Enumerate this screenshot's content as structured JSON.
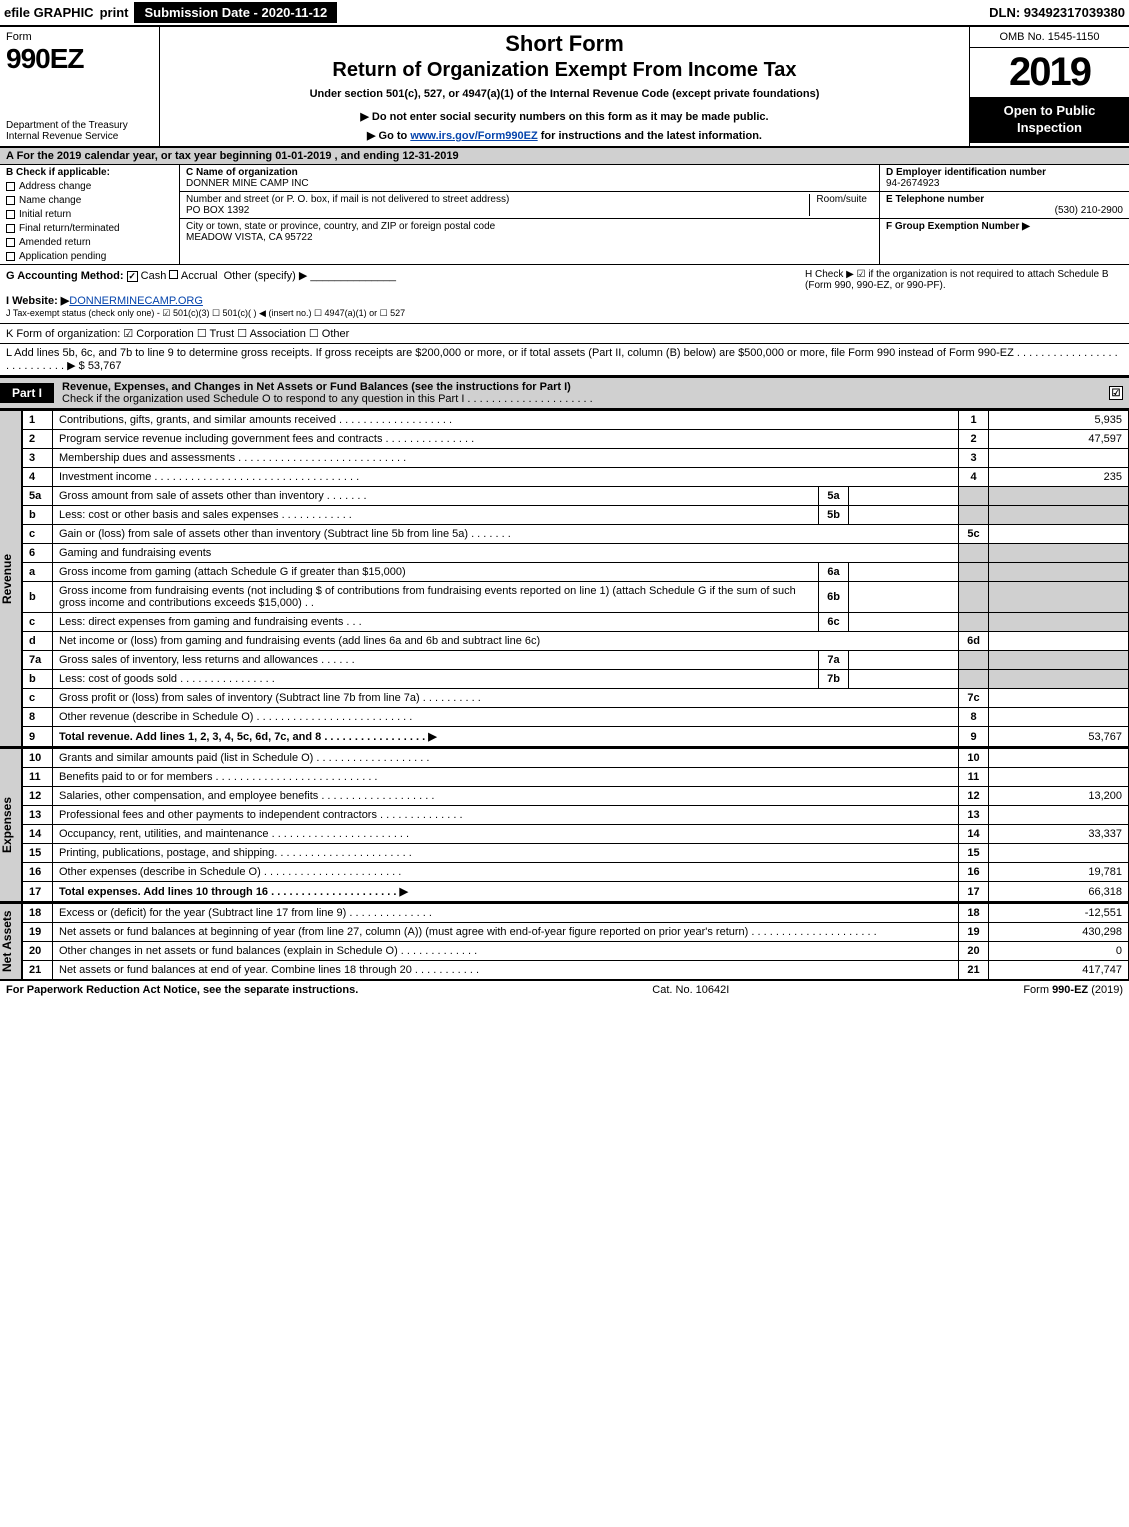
{
  "topbar": {
    "efile": "efile GRAPHIC",
    "print": "print",
    "submission_date_label": "Submission Date - 2020-11-12",
    "dln": "DLN: 93492317039380"
  },
  "header": {
    "form_word": "Form",
    "form_number": "990EZ",
    "dept": "Department of the Treasury",
    "irs": "Internal Revenue Service",
    "short_form": "Short Form",
    "title": "Return of Organization Exempt From Income Tax",
    "under_section": "Under section 501(c), 527, or 4947(a)(1) of the Internal Revenue Code (except private foundations)",
    "do_not_enter": "▶ Do not enter social security numbers on this form as it may be made public.",
    "goto_pre": "▶ Go to ",
    "goto_link": "www.irs.gov/Form990EZ",
    "goto_post": " for instructions and the latest information.",
    "omb": "OMB No. 1545-1150",
    "year": "2019",
    "open_public": "Open to Public Inspection"
  },
  "tax_year": "A For the 2019 calendar year, or tax year beginning 01-01-2019 , and ending 12-31-2019",
  "col_b": {
    "header": "B Check if applicable:",
    "items": [
      "Address change",
      "Name change",
      "Initial return",
      "Final return/terminated",
      "Amended return",
      "Application pending"
    ]
  },
  "col_c": {
    "name_label": "C Name of organization",
    "name": "DONNER MINE CAMP INC",
    "addr_label": "Number and street (or P. O. box, if mail is not delivered to street address)",
    "addr": "PO BOX 1392",
    "room_label": "Room/suite",
    "city_label": "City or town, state or province, country, and ZIP or foreign postal code",
    "city": "MEADOW VISTA, CA  95722"
  },
  "col_d": {
    "d_label": "D Employer identification number",
    "d_val": "94-2674923",
    "e_label": "E Telephone number",
    "e_val": "(530) 210-2900",
    "f_label": "F Group Exemption Number  ▶"
  },
  "g": {
    "label": "G Accounting Method:",
    "cash": "Cash",
    "accrual": "Accrual",
    "other": "Other (specify) ▶"
  },
  "h": "H  Check ▶  ☑  if the organization is not required to attach Schedule B (Form 990, 990-EZ, or 990-PF).",
  "i": {
    "label": "I Website: ▶",
    "val": "DONNERMINECAMP.ORG"
  },
  "j": "J Tax-exempt status (check only one) - ☑ 501(c)(3) ☐ 501(c)(  ) ◀ (insert no.) ☐ 4947(a)(1) or ☐ 527",
  "k": "K Form of organization:  ☑ Corporation  ☐ Trust  ☐ Association  ☐ Other",
  "l": {
    "text": "L Add lines 5b, 6c, and 7b to line 9 to determine gross receipts. If gross receipts are $200,000 or more, or if total assets (Part II, column (B) below) are $500,000 or more, file Form 990 instead of Form 990-EZ  .  .  .  .  .  .  .  .  .  .  .  .  .  .  .  .  .  .  .  .  .  .  .  .  .  .  .  ▶ $ ",
    "amount": "53,767"
  },
  "part1": {
    "label": "Part I",
    "title": "Revenue, Expenses, and Changes in Net Assets or Fund Balances (see the instructions for Part I)",
    "subtitle": "Check if the organization used Schedule O to respond to any question in this Part I  .  .  .  .  .  .  .  .  .  .  .  .  .  .  .  .  .  .  .  .  .",
    "checked": "☑"
  },
  "side_labels": {
    "revenue": "Revenue",
    "expenses": "Expenses",
    "net_assets": "Net Assets"
  },
  "lines": {
    "1": {
      "n": "1",
      "d": "Contributions, gifts, grants, and similar amounts received  .  .  .  .  .  .  .  .  .  .  .  .  .  .  .  .  .  .  .",
      "ln": "1",
      "amt": "5,935"
    },
    "2": {
      "n": "2",
      "d": "Program service revenue including government fees and contracts  .  .  .  .  .  .  .  .  .  .  .  .  .  .  .",
      "ln": "2",
      "amt": "47,597"
    },
    "3": {
      "n": "3",
      "d": "Membership dues and assessments  .  .  .  .  .  .  .  .  .  .  .  .  .  .  .  .  .  .  .  .  .  .  .  .  .  .  .  .",
      "ln": "3",
      "amt": ""
    },
    "4": {
      "n": "4",
      "d": "Investment income  .  .  .  .  .  .  .  .  .  .  .  .  .  .  .  .  .  .  .  .  .  .  .  .  .  .  .  .  .  .  .  .  .  .",
      "ln": "4",
      "amt": "235"
    },
    "5a": {
      "n": "5a",
      "d": "Gross amount from sale of assets other than inventory  .  .  .  .  .  .  .",
      "sub": "5a"
    },
    "5b": {
      "n": "b",
      "d": "Less: cost or other basis and sales expenses  .  .  .  .  .  .  .  .  .  .  .  .",
      "sub": "5b"
    },
    "5c": {
      "n": "c",
      "d": "Gain or (loss) from sale of assets other than inventory (Subtract line 5b from line 5a)  .  .  .  .  .  .  .",
      "ln": "5c",
      "amt": ""
    },
    "6": {
      "n": "6",
      "d": "Gaming and fundraising events"
    },
    "6a": {
      "n": "a",
      "d": "Gross income from gaming (attach Schedule G if greater than $15,000)",
      "sub": "6a"
    },
    "6b": {
      "n": "b",
      "d": "Gross income from fundraising events (not including $                    of contributions from fundraising events reported on line 1) (attach Schedule G if the sum of such gross income and contributions exceeds $15,000)    .  .",
      "sub": "6b"
    },
    "6c": {
      "n": "c",
      "d": "Less: direct expenses from gaming and fundraising events     .  .  .",
      "sub": "6c"
    },
    "6d": {
      "n": "d",
      "d": "Net income or (loss) from gaming and fundraising events (add lines 6a and 6b and subtract line 6c)",
      "ln": "6d",
      "amt": ""
    },
    "7a": {
      "n": "7a",
      "d": "Gross sales of inventory, less returns and allowances  .  .  .  .  .  .",
      "sub": "7a"
    },
    "7b": {
      "n": "b",
      "d": "Less: cost of goods sold        .  .  .  .  .  .  .  .  .  .  .  .  .  .  .  .",
      "sub": "7b"
    },
    "7c": {
      "n": "c",
      "d": "Gross profit or (loss) from sales of inventory (Subtract line 7b from line 7a)  .  .  .  .  .  .  .  .  .  .",
      "ln": "7c",
      "amt": ""
    },
    "8": {
      "n": "8",
      "d": "Other revenue (describe in Schedule O)  .  .  .  .  .  .  .  .  .  .  .  .  .  .  .  .  .  .  .  .  .  .  .  .  .  .",
      "ln": "8",
      "amt": ""
    },
    "9": {
      "n": "9",
      "d": "Total revenue. Add lines 1, 2, 3, 4, 5c, 6d, 7c, and 8   .  .  .  .  .  .  .  .  .  .  .  .  .  .  .  .  .  ▶",
      "ln": "9",
      "amt": "53,767",
      "bold": true
    },
    "10": {
      "n": "10",
      "d": "Grants and similar amounts paid (list in Schedule O)  .  .  .  .  .  .  .  .  .  .  .  .  .  .  .  .  .  .  .",
      "ln": "10",
      "amt": ""
    },
    "11": {
      "n": "11",
      "d": "Benefits paid to or for members    .  .  .  .  .  .  .  .  .  .  .  .  .  .  .  .  .  .  .  .  .  .  .  .  .  .  .",
      "ln": "11",
      "amt": ""
    },
    "12": {
      "n": "12",
      "d": "Salaries, other compensation, and employee benefits  .  .  .  .  .  .  .  .  .  .  .  .  .  .  .  .  .  .  .",
      "ln": "12",
      "amt": "13,200"
    },
    "13": {
      "n": "13",
      "d": "Professional fees and other payments to independent contractors  .  .  .  .  .  .  .  .  .  .  .  .  .  .",
      "ln": "13",
      "amt": ""
    },
    "14": {
      "n": "14",
      "d": "Occupancy, rent, utilities, and maintenance  .  .  .  .  .  .  .  .  .  .  .  .  .  .  .  .  .  .  .  .  .  .  .",
      "ln": "14",
      "amt": "33,337"
    },
    "15": {
      "n": "15",
      "d": "Printing, publications, postage, and shipping.  .  .  .  .  .  .  .  .  .  .  .  .  .  .  .  .  .  .  .  .  .  .",
      "ln": "15",
      "amt": ""
    },
    "16": {
      "n": "16",
      "d": "Other expenses (describe in Schedule O)    .  .  .  .  .  .  .  .  .  .  .  .  .  .  .  .  .  .  .  .  .  .  .",
      "ln": "16",
      "amt": "19,781"
    },
    "17": {
      "n": "17",
      "d": "Total expenses. Add lines 10 through 16    .  .  .  .  .  .  .  .  .  .  .  .  .  .  .  .  .  .  .  .  .  ▶",
      "ln": "17",
      "amt": "66,318",
      "bold": true
    },
    "18": {
      "n": "18",
      "d": "Excess or (deficit) for the year (Subtract line 17 from line 9)       .  .  .  .  .  .  .  .  .  .  .  .  .  .",
      "ln": "18",
      "amt": "-12,551"
    },
    "19": {
      "n": "19",
      "d": "Net assets or fund balances at beginning of year (from line 27, column (A)) (must agree with end-of-year figure reported on prior year's return)  .  .  .  .  .  .  .  .  .  .  .  .  .  .  .  .  .  .  .  .  .",
      "ln": "19",
      "amt": "430,298"
    },
    "20": {
      "n": "20",
      "d": "Other changes in net assets or fund balances (explain in Schedule O)  .  .  .  .  .  .  .  .  .  .  .  .  .",
      "ln": "20",
      "amt": "0"
    },
    "21": {
      "n": "21",
      "d": "Net assets or fund balances at end of year. Combine lines 18 through 20  .  .  .  .  .  .  .  .  .  .  .",
      "ln": "21",
      "amt": "417,747"
    }
  },
  "footer": {
    "left": "For Paperwork Reduction Act Notice, see the separate instructions.",
    "center": "Cat. No. 10642I",
    "right": "Form 990-EZ (2019)"
  },
  "colors": {
    "shade": "#d0d0d0",
    "black": "#000000",
    "link": "#0645ad"
  }
}
